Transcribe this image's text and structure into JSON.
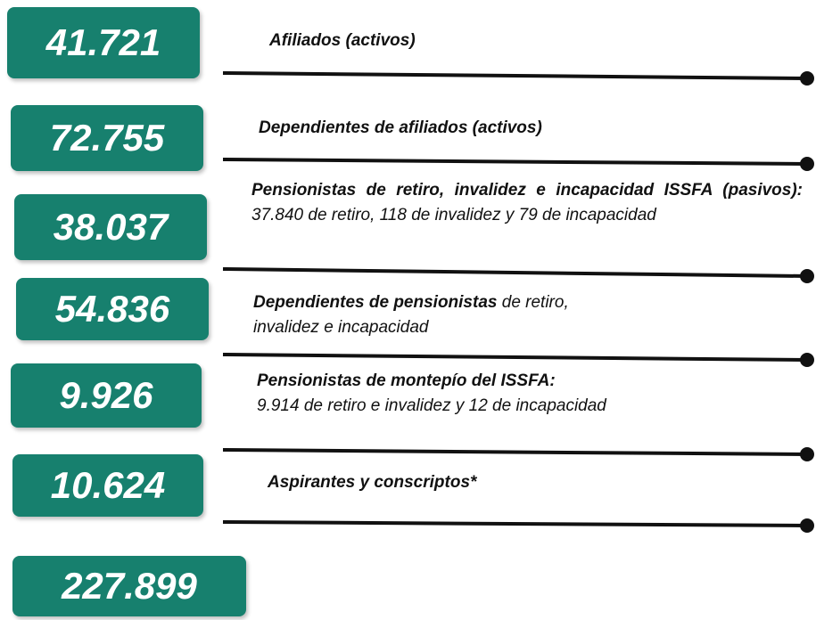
{
  "items": [
    {
      "value": "41.721",
      "title": "Afiliados (activos)"
    },
    {
      "value": "72.755",
      "title": "Dependientes de afiliados (activos)"
    },
    {
      "value": "38.037",
      "title": "Pensionistas de retiro, invalidez e incapacidad ISSFA (pasivos):",
      "detail": "37.840 de retiro, 118 de invalidez y 79 de incapacidad"
    },
    {
      "value": "54.836",
      "title": "Dependientes de pensionistas",
      "detail": "de retiro, invalidez e incapacidad"
    },
    {
      "value": "9.926",
      "title": "Pensionistas de montepío del ISSFA:",
      "detail": "9.914 de retiro e invalidez y 12 de incapacidad"
    },
    {
      "value": "10.624",
      "title": "Aspirantes y conscriptos*"
    }
  ],
  "total": "227.899"
}
